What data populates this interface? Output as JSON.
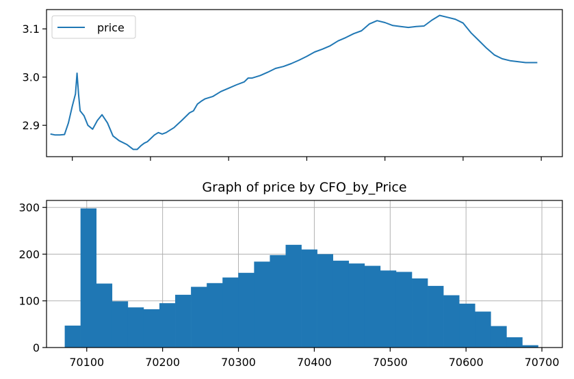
{
  "chart_data": [
    {
      "type": "line",
      "title": "",
      "xlabel": "",
      "ylabel": "",
      "xlim": [
        70067,
        70727
      ],
      "ylim": [
        2.835,
        3.14
      ],
      "yticks": [
        2.9,
        3.0,
        3.1
      ],
      "ytick_labels": [
        "2.9",
        "3.0",
        "3.1"
      ],
      "xtick_labels_shown": false,
      "grid": false,
      "legend": {
        "placement": "top-left",
        "entries": [
          "price"
        ]
      },
      "color": "#1f77b4",
      "series": [
        {
          "name": "price",
          "x": [
            70072,
            70078,
            70084,
            70090,
            70095,
            70100,
            70104,
            70106,
            70108,
            70110,
            70115,
            70120,
            70126,
            70132,
            70138,
            70145,
            70152,
            70160,
            70170,
            70178,
            70183,
            70188,
            70192,
            70196,
            70200,
            70205,
            70210,
            70215,
            70220,
            70225,
            70230,
            70240,
            70250,
            70255,
            70260,
            70265,
            70270,
            70280,
            70290,
            70300,
            70310,
            70320,
            70325,
            70330,
            70340,
            70350,
            70360,
            70370,
            70380,
            70390,
            70400,
            70410,
            70420,
            70430,
            70440,
            70450,
            70460,
            70470,
            70480,
            70490,
            70500,
            70510,
            70520,
            70530,
            70540,
            70550,
            70560,
            70570,
            70580,
            70590,
            70600,
            70610,
            70620,
            70630,
            70640,
            70650,
            70660,
            70670,
            70680,
            70690,
            70695
          ],
          "values": [
            2.882,
            2.88,
            2.88,
            2.881,
            2.905,
            2.94,
            2.965,
            3.008,
            2.965,
            2.93,
            2.92,
            2.9,
            2.892,
            2.91,
            2.922,
            2.905,
            2.878,
            2.868,
            2.86,
            2.85,
            2.85,
            2.858,
            2.863,
            2.866,
            2.872,
            2.88,
            2.885,
            2.882,
            2.885,
            2.89,
            2.895,
            2.91,
            2.926,
            2.93,
            2.944,
            2.95,
            2.955,
            2.96,
            2.97,
            2.977,
            2.984,
            2.99,
            2.998,
            2.998,
            3.003,
            3.01,
            3.018,
            3.022,
            3.028,
            3.035,
            3.043,
            3.052,
            3.058,
            3.065,
            3.075,
            3.082,
            3.09,
            3.096,
            3.11,
            3.117,
            3.113,
            3.107,
            3.105,
            3.103,
            3.105,
            3.106,
            3.118,
            3.128,
            3.124,
            3.12,
            3.112,
            3.092,
            3.076,
            3.06,
            3.046,
            3.038,
            3.034,
            3.032,
            3.03,
            3.03,
            3.03
          ]
        }
      ]
    },
    {
      "type": "bar",
      "title": "Graph of price by CFO_by_Price",
      "xlabel": "",
      "ylabel": "",
      "xlim": [
        70047,
        70727
      ],
      "ylim": [
        0,
        315
      ],
      "xticks": [
        70100,
        70200,
        70300,
        70400,
        70500,
        70600,
        70700
      ],
      "xtick_labels": [
        "70100",
        "70200",
        "70300",
        "70400",
        "70500",
        "70600",
        "70700"
      ],
      "yticks": [
        0,
        100,
        200,
        300
      ],
      "ytick_labels": [
        "0",
        "100",
        "200",
        "300"
      ],
      "grid": true,
      "color": "#1f77b4",
      "bin_start": 70071,
      "bin_width": 20.8,
      "values": [
        47,
        298,
        137,
        99,
        86,
        82,
        95,
        113,
        130,
        138,
        150,
        160,
        184,
        198,
        220,
        210,
        200,
        186,
        180,
        175,
        165,
        162,
        148,
        132,
        112,
        94,
        77,
        46,
        22,
        5
      ]
    }
  ]
}
